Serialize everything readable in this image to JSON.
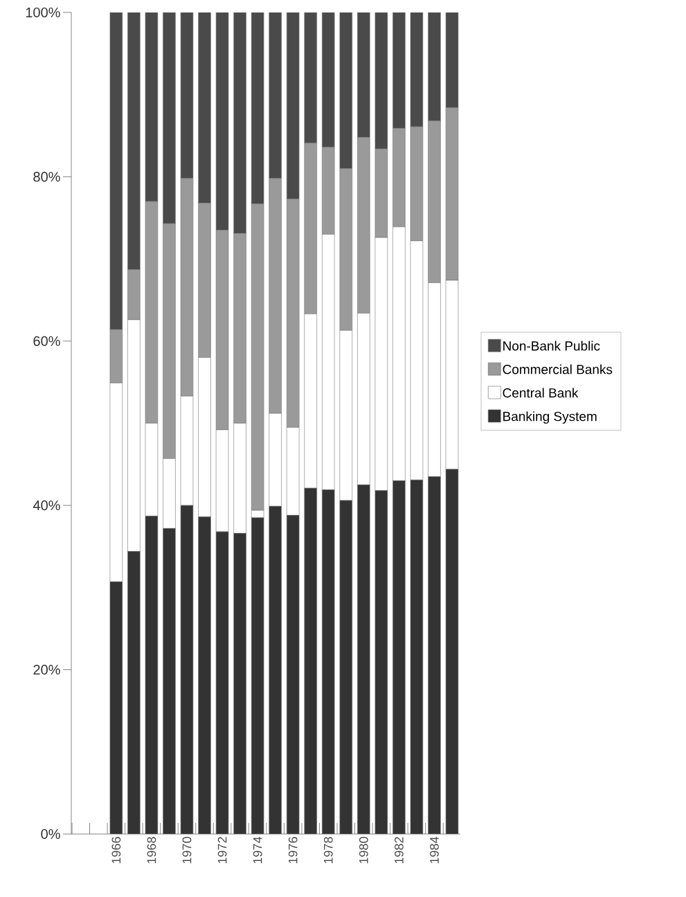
{
  "chart_data": {
    "type": "bar",
    "stacked": true,
    "categories": [
      "1966",
      null,
      "1968",
      null,
      "1970",
      null,
      "1972",
      null,
      "1974",
      null,
      "1976",
      null,
      "1978",
      null,
      "1980",
      null,
      "1982",
      null,
      "1984",
      null
    ],
    "series": [
      {
        "name": "Banking System",
        "color": "#333333",
        "values": [
          30.7,
          34.4,
          38.7,
          37.2,
          40.0,
          38.6,
          36.8,
          36.6,
          38.5,
          39.9,
          38.8,
          42.1,
          41.9,
          40.6,
          42.5,
          41.8,
          43.0,
          43.1,
          43.5,
          44.4
        ]
      },
      {
        "name": "Central Bank",
        "color": "#ffffff",
        "values": [
          24.2,
          28.2,
          11.3,
          8.5,
          13.3,
          19.4,
          12.4,
          13.4,
          0.9,
          11.3,
          10.7,
          21.2,
          31.1,
          20.7,
          20.9,
          30.8,
          30.9,
          29.1,
          23.6,
          23.0
        ]
      },
      {
        "name": "Commercial Banks",
        "color": "#9a9a9a",
        "values": [
          6.5,
          6.1,
          27.0,
          28.6,
          26.5,
          18.8,
          24.3,
          23.1,
          37.3,
          28.6,
          27.8,
          20.8,
          10.6,
          19.7,
          21.4,
          10.8,
          12.0,
          13.9,
          19.7,
          21.0
        ]
      },
      {
        "name": "Non-Bank Public",
        "color": "#4a4a4a",
        "values": [
          38.6,
          31.3,
          23.0,
          25.7,
          20.2,
          23.2,
          26.5,
          26.9,
          23.3,
          20.2,
          22.7,
          15.9,
          16.4,
          19.0,
          15.2,
          16.6,
          14.1,
          13.9,
          13.2,
          11.6
        ]
      }
    ],
    "ylim": [
      0,
      100
    ],
    "yticks": [
      {
        "value": 0,
        "label": "0%"
      },
      {
        "value": 20,
        "label": "20%"
      },
      {
        "value": 40,
        "label": "40%"
      },
      {
        "value": 60,
        "label": "60%"
      },
      {
        "value": 80,
        "label": "80%"
      },
      {
        "value": 100,
        "label": "100%"
      }
    ],
    "legend": "right"
  }
}
